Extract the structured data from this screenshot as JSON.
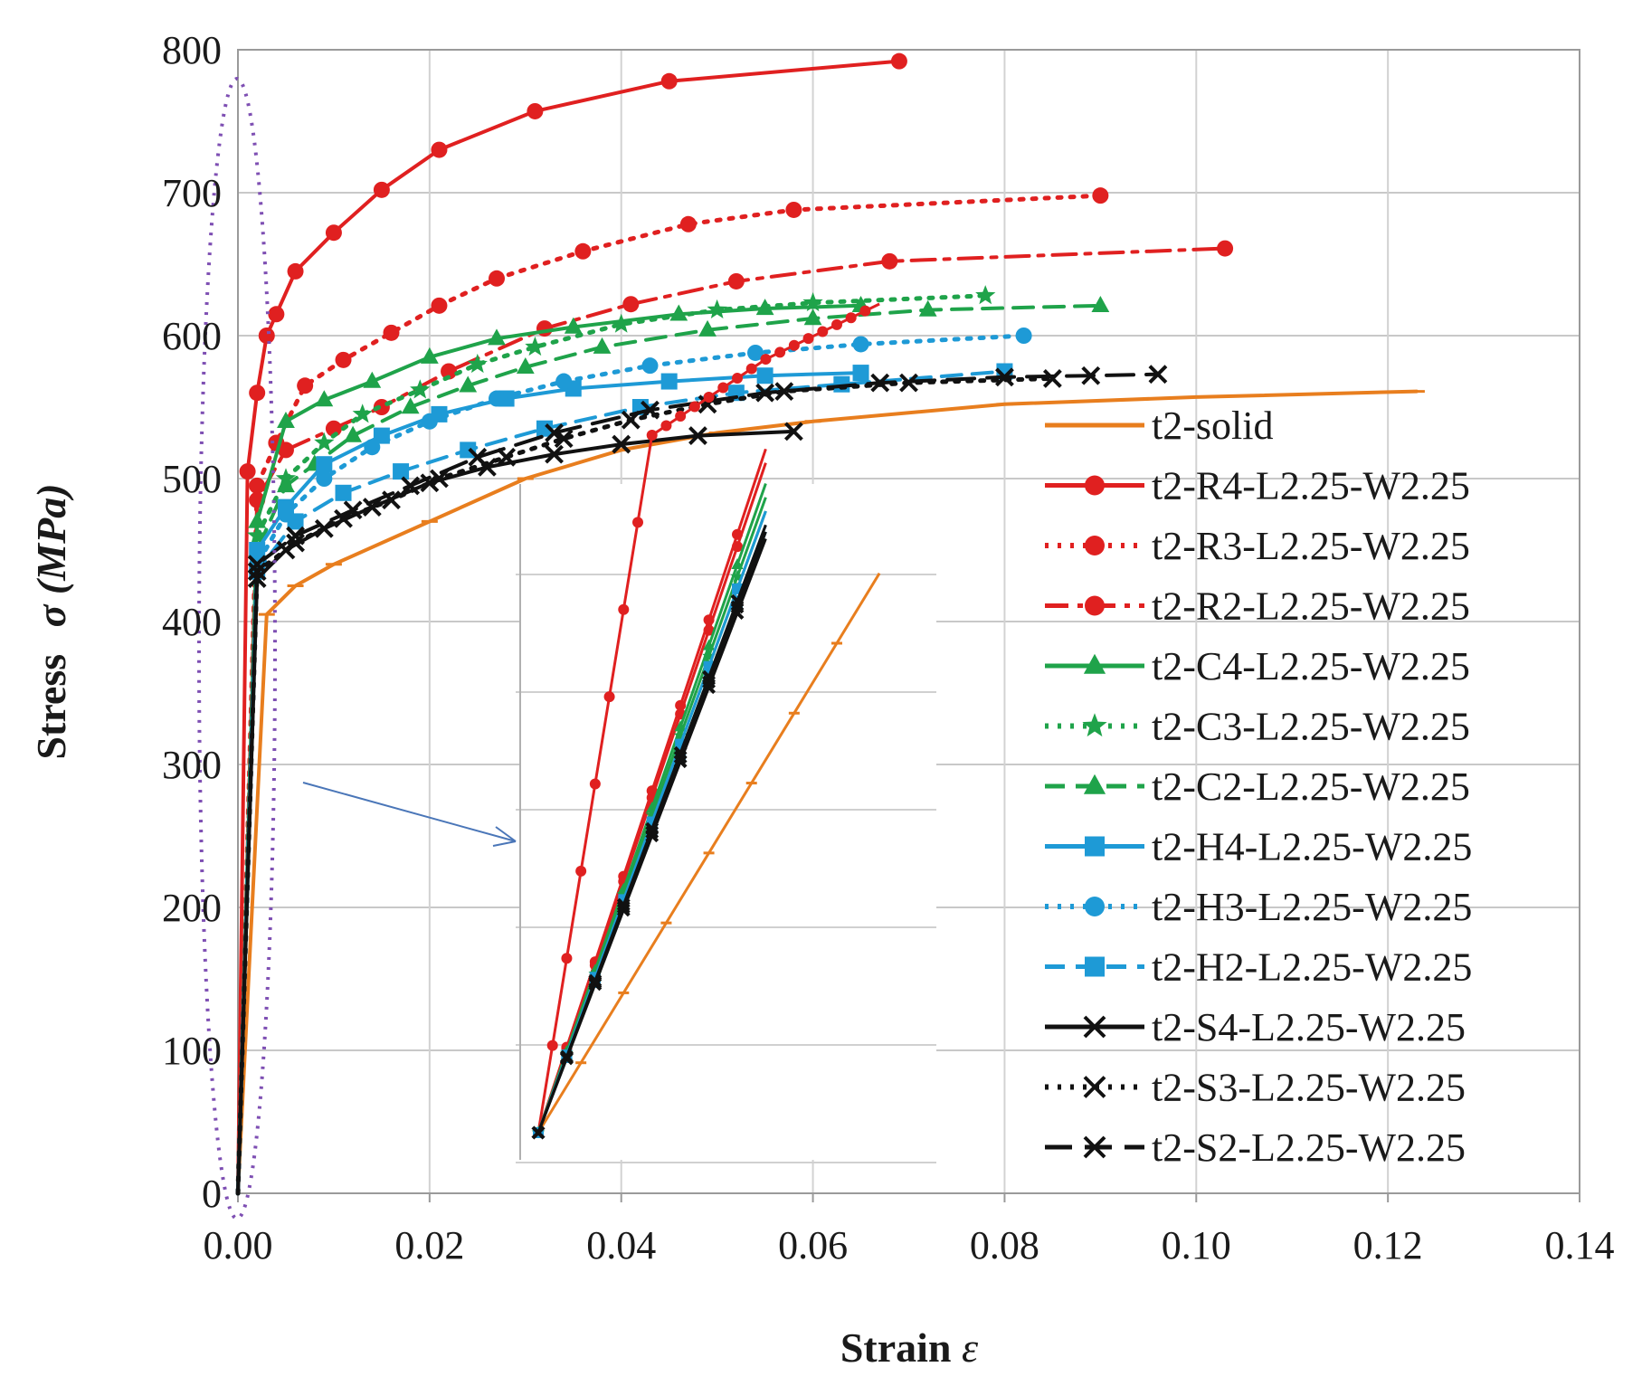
{
  "chart_data": {
    "type": "line",
    "title": "",
    "xlabel": "Strain",
    "xlabel_symbol": "ε",
    "ylabel": "Stress",
    "ylabel_symbol": "σ (MPa)",
    "xlim": [
      0,
      0.14
    ],
    "ylim": [
      0,
      800
    ],
    "x_ticks": [
      0,
      0.02,
      0.04,
      0.06,
      0.08,
      0.1,
      0.12,
      0.14
    ],
    "x_tick_labels": [
      "0.00",
      "0.02",
      "0.04",
      "0.06",
      "0.08",
      "0.10",
      "0.12",
      "0.14"
    ],
    "y_ticks": [
      0,
      100,
      200,
      300,
      400,
      500,
      600,
      700,
      800
    ],
    "y_tick_labels": [
      "0",
      "100",
      "200",
      "300",
      "400",
      "500",
      "600",
      "700",
      "800"
    ],
    "grid": true,
    "legend_position": "right",
    "inset": {
      "description_ref": "zoom of elastic region",
      "x_range": [
        0,
        0.0035
      ],
      "y_range": [
        0,
        450
      ]
    },
    "series": [
      {
        "name": "t2-solid",
        "color": "#e87e1e",
        "dash": "solid",
        "marker": "dash",
        "x": [
          0,
          0.003,
          0.006,
          0.01,
          0.02,
          0.03,
          0.04,
          0.05,
          0.06,
          0.08,
          0.1,
          0.123
        ],
        "y": [
          0,
          405,
          425,
          440,
          470,
          500,
          520,
          532,
          540,
          552,
          557,
          561
        ]
      },
      {
        "name": "t2-R4-L2.25-W2.25",
        "color": "#e02020",
        "dash": "solid",
        "marker": "circle",
        "x": [
          0,
          0.001,
          0.002,
          0.003,
          0.004,
          0.006,
          0.01,
          0.015,
          0.021,
          0.031,
          0.045,
          0.069
        ],
        "y": [
          0,
          505,
          560,
          600,
          615,
          645,
          672,
          702,
          730,
          757,
          778,
          792
        ]
      },
      {
        "name": "t2-R3-L2.25-W2.25",
        "color": "#e02020",
        "dash": "dot",
        "marker": "circle",
        "x": [
          0,
          0.002,
          0.004,
          0.007,
          0.011,
          0.016,
          0.021,
          0.027,
          0.036,
          0.047,
          0.058,
          0.09
        ],
        "y": [
          0,
          495,
          525,
          565,
          583,
          602,
          621,
          640,
          659,
          678,
          688,
          698
        ]
      },
      {
        "name": "t2-R2-L2.25-W2.25",
        "color": "#e02020",
        "dash": "dashdot",
        "marker": "circle",
        "x": [
          0,
          0.002,
          0.005,
          0.01,
          0.015,
          0.022,
          0.032,
          0.041,
          0.052,
          0.068,
          0.103
        ],
        "y": [
          0,
          485,
          520,
          535,
          550,
          575,
          605,
          622,
          638,
          652,
          661
        ]
      },
      {
        "name": "t2-C4-L2.25-W2.25",
        "color": "#1fa34a",
        "dash": "solid",
        "marker": "triangle",
        "x": [
          0,
          0.002,
          0.005,
          0.009,
          0.014,
          0.02,
          0.027,
          0.035,
          0.046,
          0.055,
          0.065
        ],
        "y": [
          0,
          470,
          540,
          555,
          568,
          585,
          598,
          606,
          615,
          619,
          621
        ]
      },
      {
        "name": "t2-C3-L2.25-W2.25",
        "color": "#1fa34a",
        "dash": "dot",
        "marker": "star",
        "x": [
          0,
          0.002,
          0.005,
          0.009,
          0.013,
          0.019,
          0.025,
          0.031,
          0.04,
          0.05,
          0.06,
          0.078
        ],
        "y": [
          0,
          460,
          500,
          525,
          545,
          562,
          580,
          592,
          608,
          618,
          623,
          628
        ]
      },
      {
        "name": "t2-C2-L2.25-W2.25",
        "color": "#1fa34a",
        "dash": "dash",
        "marker": "triangle",
        "x": [
          0,
          0.002,
          0.005,
          0.008,
          0.012,
          0.018,
          0.024,
          0.03,
          0.038,
          0.049,
          0.06,
          0.072,
          0.09
        ],
        "y": [
          0,
          450,
          495,
          510,
          530,
          550,
          565,
          578,
          592,
          604,
          612,
          618,
          621
        ]
      },
      {
        "name": "t2-H4-L2.25-W2.25",
        "color": "#1e9ad6",
        "dash": "solid",
        "marker": "square",
        "x": [
          0,
          0.002,
          0.005,
          0.009,
          0.015,
          0.021,
          0.028,
          0.035,
          0.045,
          0.055,
          0.065
        ],
        "y": [
          0,
          450,
          480,
          510,
          530,
          545,
          556,
          563,
          568,
          572,
          574
        ]
      },
      {
        "name": "t2-H3-L2.25-W2.25",
        "color": "#1e9ad6",
        "dash": "dot",
        "marker": "circle",
        "x": [
          0,
          0.002,
          0.005,
          0.009,
          0.014,
          0.02,
          0.027,
          0.034,
          0.043,
          0.054,
          0.065,
          0.082
        ],
        "y": [
          0,
          440,
          475,
          500,
          522,
          540,
          556,
          568,
          579,
          588,
          594,
          600
        ]
      },
      {
        "name": "t2-H2-L2.25-W2.25",
        "color": "#1e9ad6",
        "dash": "dash",
        "marker": "square",
        "x": [
          0,
          0.002,
          0.006,
          0.011,
          0.017,
          0.024,
          0.032,
          0.042,
          0.052,
          0.063,
          0.08
        ],
        "y": [
          0,
          435,
          470,
          490,
          505,
          520,
          535,
          550,
          560,
          566,
          575
        ]
      },
      {
        "name": "t2-S4-L2.25-W2.25",
        "color": "#111111",
        "dash": "solid",
        "marker": "x",
        "x": [
          0,
          0.002,
          0.005,
          0.009,
          0.014,
          0.02,
          0.026,
          0.033,
          0.04,
          0.048,
          0.058
        ],
        "y": [
          0,
          430,
          450,
          465,
          480,
          497,
          508,
          517,
          524,
          530,
          533
        ]
      },
      {
        "name": "t2-S3-L2.25-W2.25",
        "color": "#111111",
        "dash": "dot",
        "marker": "x",
        "x": [
          0,
          0.002,
          0.006,
          0.011,
          0.016,
          0.021,
          0.028,
          0.034,
          0.041,
          0.049,
          0.057,
          0.07,
          0.085
        ],
        "y": [
          0,
          435,
          455,
          472,
          485,
          500,
          515,
          528,
          541,
          552,
          561,
          567,
          570
        ]
      },
      {
        "name": "t2-S2-L2.25-W2.25",
        "color": "#111111",
        "dash": "dashlong",
        "marker": "x",
        "x": [
          0,
          0.002,
          0.006,
          0.012,
          0.018,
          0.025,
          0.033,
          0.043,
          0.055,
          0.067,
          0.08,
          0.089,
          0.096
        ],
        "y": [
          0,
          440,
          460,
          478,
          495,
          515,
          532,
          548,
          560,
          567,
          571,
          572,
          573
        ]
      }
    ]
  }
}
